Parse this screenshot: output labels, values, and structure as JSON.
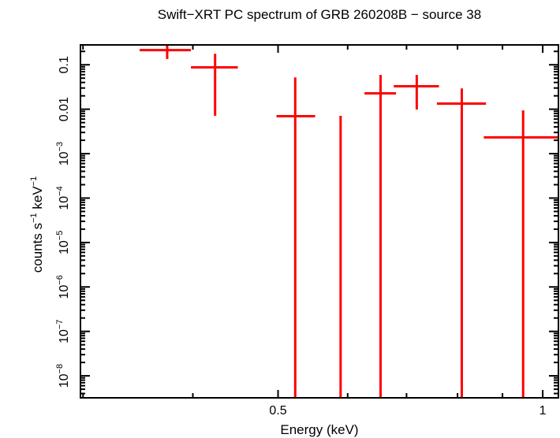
{
  "chart_data": {
    "type": "scatter",
    "title": "Swift−XRT PC spectrum of GRB 260208B − source 38",
    "xlabel": "Energy (keV)",
    "ylabel": {
      "text": "counts s",
      "sup1": "−1",
      "mid": " keV",
      "sup2": "−1"
    },
    "x_scale": "log",
    "y_scale": "log",
    "xlim": [
      0.298,
      1.042
    ],
    "ylim": [
      3.2e-09,
      0.28
    ],
    "grid": false,
    "legend": "none",
    "colors": {
      "data": "#ff0000",
      "axes": "#000000"
    },
    "x_ticks": [
      {
        "value": 0.5,
        "label": "0.5"
      },
      {
        "value": 1,
        "label": "1"
      }
    ],
    "x_minor_ticks": [
      0.3,
      0.4,
      0.6,
      0.7,
      0.8,
      0.9
    ],
    "y_ticks": [
      {
        "value": 0.1,
        "label": "0.1"
      },
      {
        "value": 0.01,
        "label": "0.01"
      },
      {
        "value": 0.001,
        "label": "10",
        "sup": "−3"
      },
      {
        "value": 0.0001,
        "label": "10",
        "sup": "−4"
      },
      {
        "value": 1e-05,
        "label": "10",
        "sup": "−5"
      },
      {
        "value": 1e-06,
        "label": "10",
        "sup": "−6"
      },
      {
        "value": 1e-07,
        "label": "10",
        "sup": "−7"
      },
      {
        "value": 1e-08,
        "label": "10",
        "sup": "−8"
      }
    ],
    "series": [
      {
        "points": [
          {
            "x": 0.374,
            "x_lo": 0.348,
            "x_hi": 0.398,
            "y": 0.214,
            "y_lo": 0.135,
            "y_hi": 0.3
          },
          {
            "x": 0.424,
            "x_lo": 0.398,
            "x_hi": 0.45,
            "y": 0.0874,
            "y_lo": 0.0071,
            "y_hi": 0.177
          },
          {
            "x": 0.523,
            "x_lo": 0.498,
            "x_hi": 0.551,
            "y": 0.00698,
            "y_lo": null,
            "y_hi": 0.052
          },
          {
            "x": 0.589,
            "x_lo": null,
            "x_hi": null,
            "y": null,
            "y_lo": null,
            "y_hi": 0.0071
          },
          {
            "x": 0.654,
            "x_lo": 0.627,
            "x_hi": 0.681,
            "y": 0.0227,
            "y_lo": null,
            "y_hi": 0.059
          },
          {
            "x": 0.719,
            "x_lo": 0.677,
            "x_hi": 0.762,
            "y": 0.0329,
            "y_lo": 0.0098,
            "y_hi": 0.059
          },
          {
            "x": 0.809,
            "x_lo": 0.758,
            "x_hi": 0.862,
            "y": 0.0134,
            "y_lo": null,
            "y_hi": 0.0294
          },
          {
            "x": 0.95,
            "x_lo": 0.857,
            "x_hi": 1.05,
            "y": 0.00232,
            "y_lo": null,
            "y_hi": 0.0094
          }
        ]
      }
    ]
  }
}
